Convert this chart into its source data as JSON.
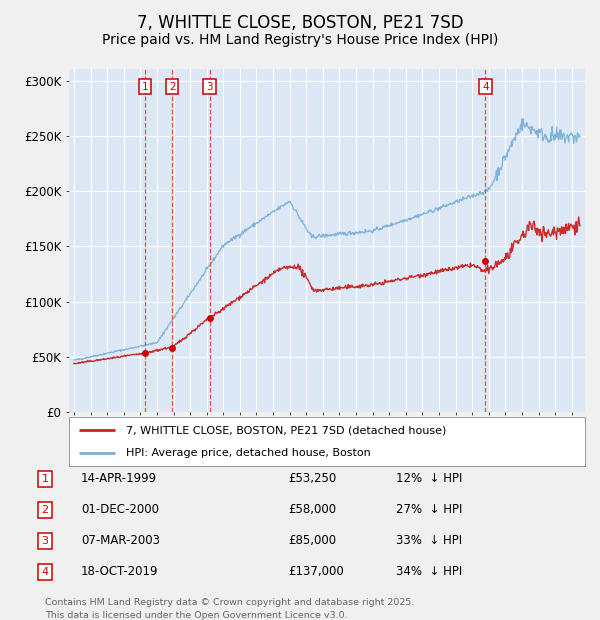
{
  "title": "7, WHITTLE CLOSE, BOSTON, PE21 7SD",
  "subtitle": "Price paid vs. HM Land Registry's House Price Index (HPI)",
  "background_color": "#f0f0f0",
  "plot_bg_color": "#dce8f5",
  "grid_color": "#ffffff",
  "ylim": [
    0,
    310000
  ],
  "yticks": [
    0,
    50000,
    100000,
    150000,
    200000,
    250000,
    300000
  ],
  "ytick_labels": [
    "£0",
    "£50K",
    "£100K",
    "£150K",
    "£200K",
    "£250K",
    "£300K"
  ],
  "xstart": 1994.7,
  "xend": 2025.8,
  "transactions": [
    {
      "num": 1,
      "date": "14-APR-1999",
      "price": 53250,
      "year": 1999.29,
      "pct": "12%",
      "dir": "↓"
    },
    {
      "num": 2,
      "date": "01-DEC-2000",
      "price": 58000,
      "year": 2000.92,
      "pct": "27%",
      "dir": "↓"
    },
    {
      "num": 3,
      "date": "07-MAR-2003",
      "price": 85000,
      "year": 2003.18,
      "pct": "33%",
      "dir": "↓"
    },
    {
      "num": 4,
      "date": "18-OCT-2019",
      "price": 137000,
      "year": 2019.8,
      "pct": "34%",
      "dir": "↓"
    }
  ],
  "line_red_color": "#cc2222",
  "line_blue_color": "#7ab0d8",
  "marker_color": "#cc0000",
  "vline_color": "#ee3333",
  "legend_label_red": "7, WHITTLE CLOSE, BOSTON, PE21 7SD (detached house)",
  "legend_label_blue": "HPI: Average price, detached house, Boston",
  "footnote": "Contains HM Land Registry data © Crown copyright and database right 2025.\nThis data is licensed under the Open Government Licence v3.0.",
  "title_fontsize": 12,
  "subtitle_fontsize": 10
}
